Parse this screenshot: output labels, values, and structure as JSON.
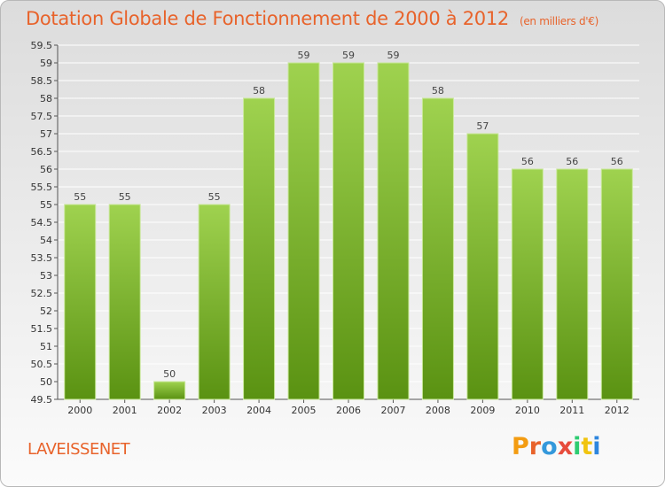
{
  "header": {
    "title": "Dotation Globale de Fonctionnement de 2000 à 2012",
    "unit": "(en milliers d'€)"
  },
  "footer": {
    "commune": "LAVEISSENET",
    "logo": "Proxiti"
  },
  "colors": {
    "accent": "#e8632b",
    "bar_top": "#9fd24f",
    "bar_bottom": "#5a9212",
    "logo_letters": [
      "#f39c12",
      "#e8632b",
      "#3498db",
      "#e74c3c",
      "#2ecc71",
      "#f1c40f",
      "#2e86de"
    ]
  },
  "chart_data": {
    "type": "bar",
    "categories": [
      "2000",
      "2001",
      "2002",
      "2003",
      "2004",
      "2005",
      "2006",
      "2007",
      "2008",
      "2009",
      "2010",
      "2011",
      "2012"
    ],
    "values": [
      55,
      55,
      50,
      55,
      58,
      59,
      59,
      59,
      58,
      57,
      56,
      56,
      56
    ],
    "data_labels": [
      "55",
      "55",
      "50",
      "55",
      "58",
      "59",
      "59",
      "59",
      "58",
      "57",
      "56",
      "56",
      "56"
    ],
    "title": "Dotation Globale de Fonctionnement de 2000 à 2012",
    "ylim": [
      49.5,
      59.5
    ],
    "yticks": [
      49.5,
      50,
      50.5,
      51,
      51.5,
      52,
      52.5,
      53,
      53.5,
      54,
      54.5,
      55,
      55.5,
      56,
      56.5,
      57,
      57.5,
      58,
      58.5,
      59,
      59.5
    ],
    "grid": true
  }
}
